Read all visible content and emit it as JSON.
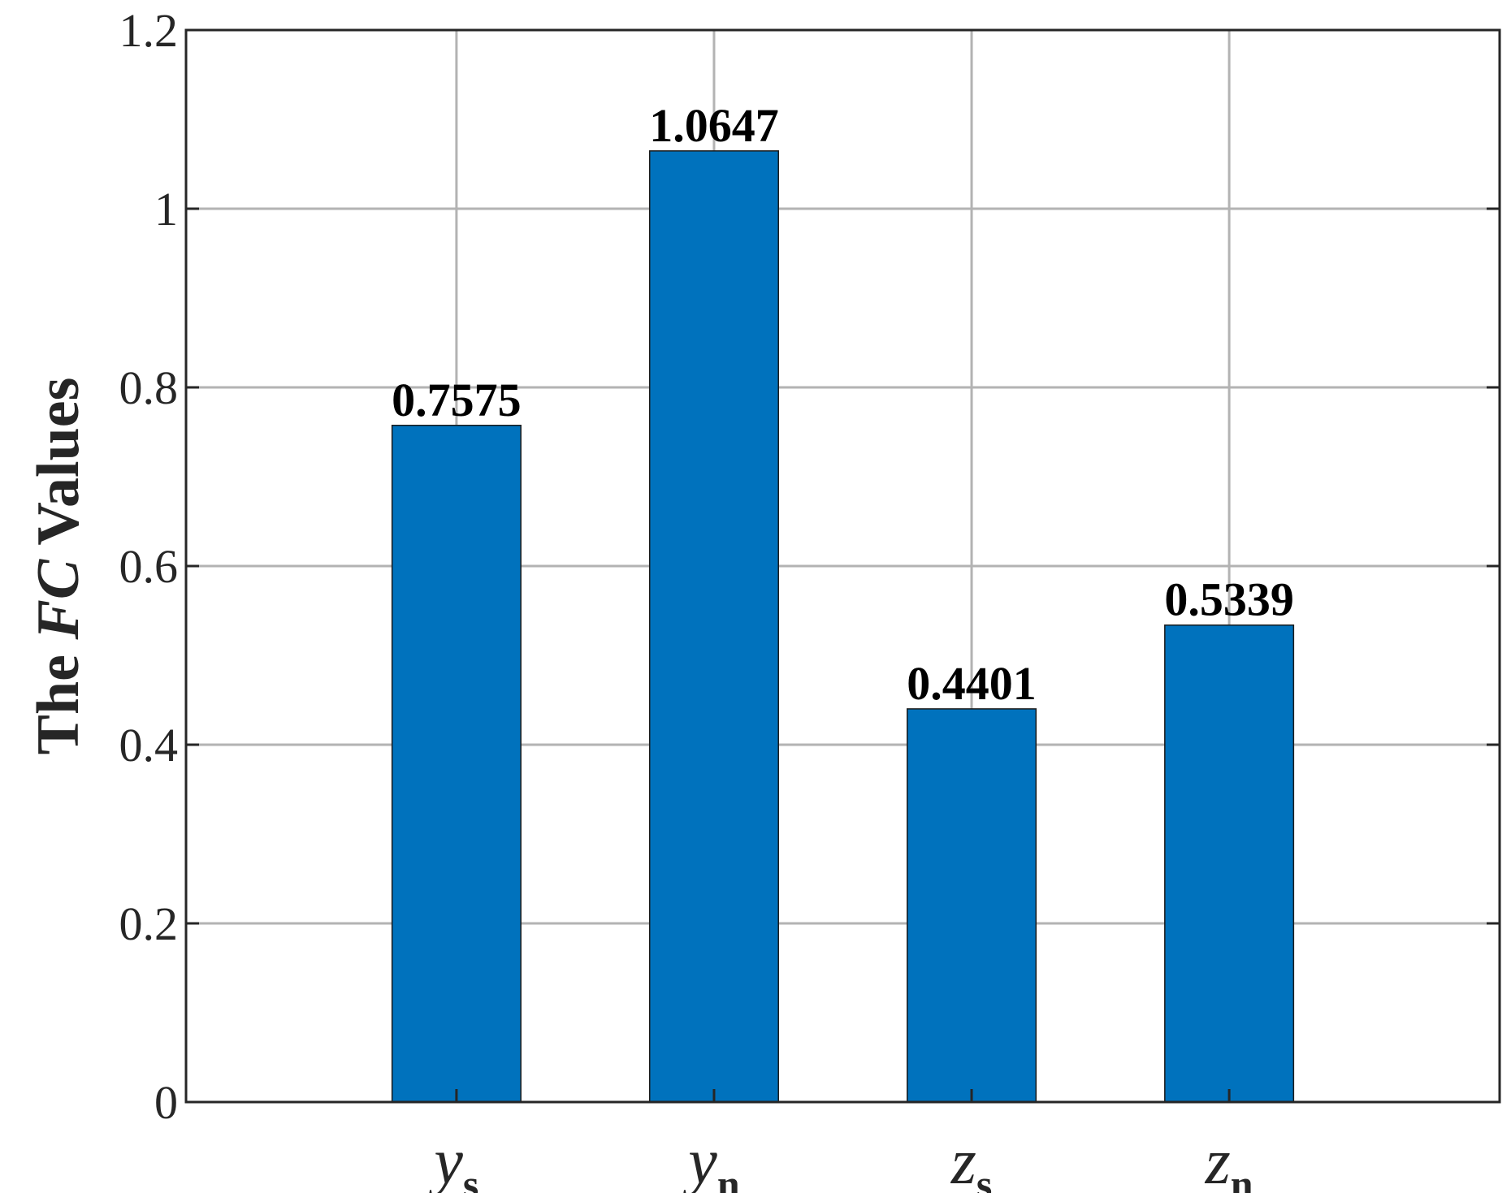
{
  "chart_data": {
    "type": "bar",
    "title": "",
    "xlabel": "",
    "ylabel": {
      "prefix": "The ",
      "italic": "FC",
      "suffix": " Values"
    },
    "categories": [
      {
        "base": "y",
        "sub": "s"
      },
      {
        "base": "y",
        "sub": "n"
      },
      {
        "base": "z",
        "sub": "s"
      },
      {
        "base": "z",
        "sub": "n"
      }
    ],
    "values": [
      0.7575,
      1.0647,
      0.4401,
      0.5339
    ],
    "data_labels": [
      "0.7575",
      "1.0647",
      "0.4401",
      "0.5339"
    ],
    "ylim": [
      0,
      1.2
    ],
    "yticks": [
      0,
      0.2,
      0.4,
      0.6,
      0.8,
      1,
      1.2
    ],
    "ytick_labels": [
      "0",
      "0.2",
      "0.4",
      "0.6",
      "0.8",
      "1",
      "1.2"
    ],
    "grid": true,
    "bar_color": "#0072BD",
    "legend": "none"
  }
}
